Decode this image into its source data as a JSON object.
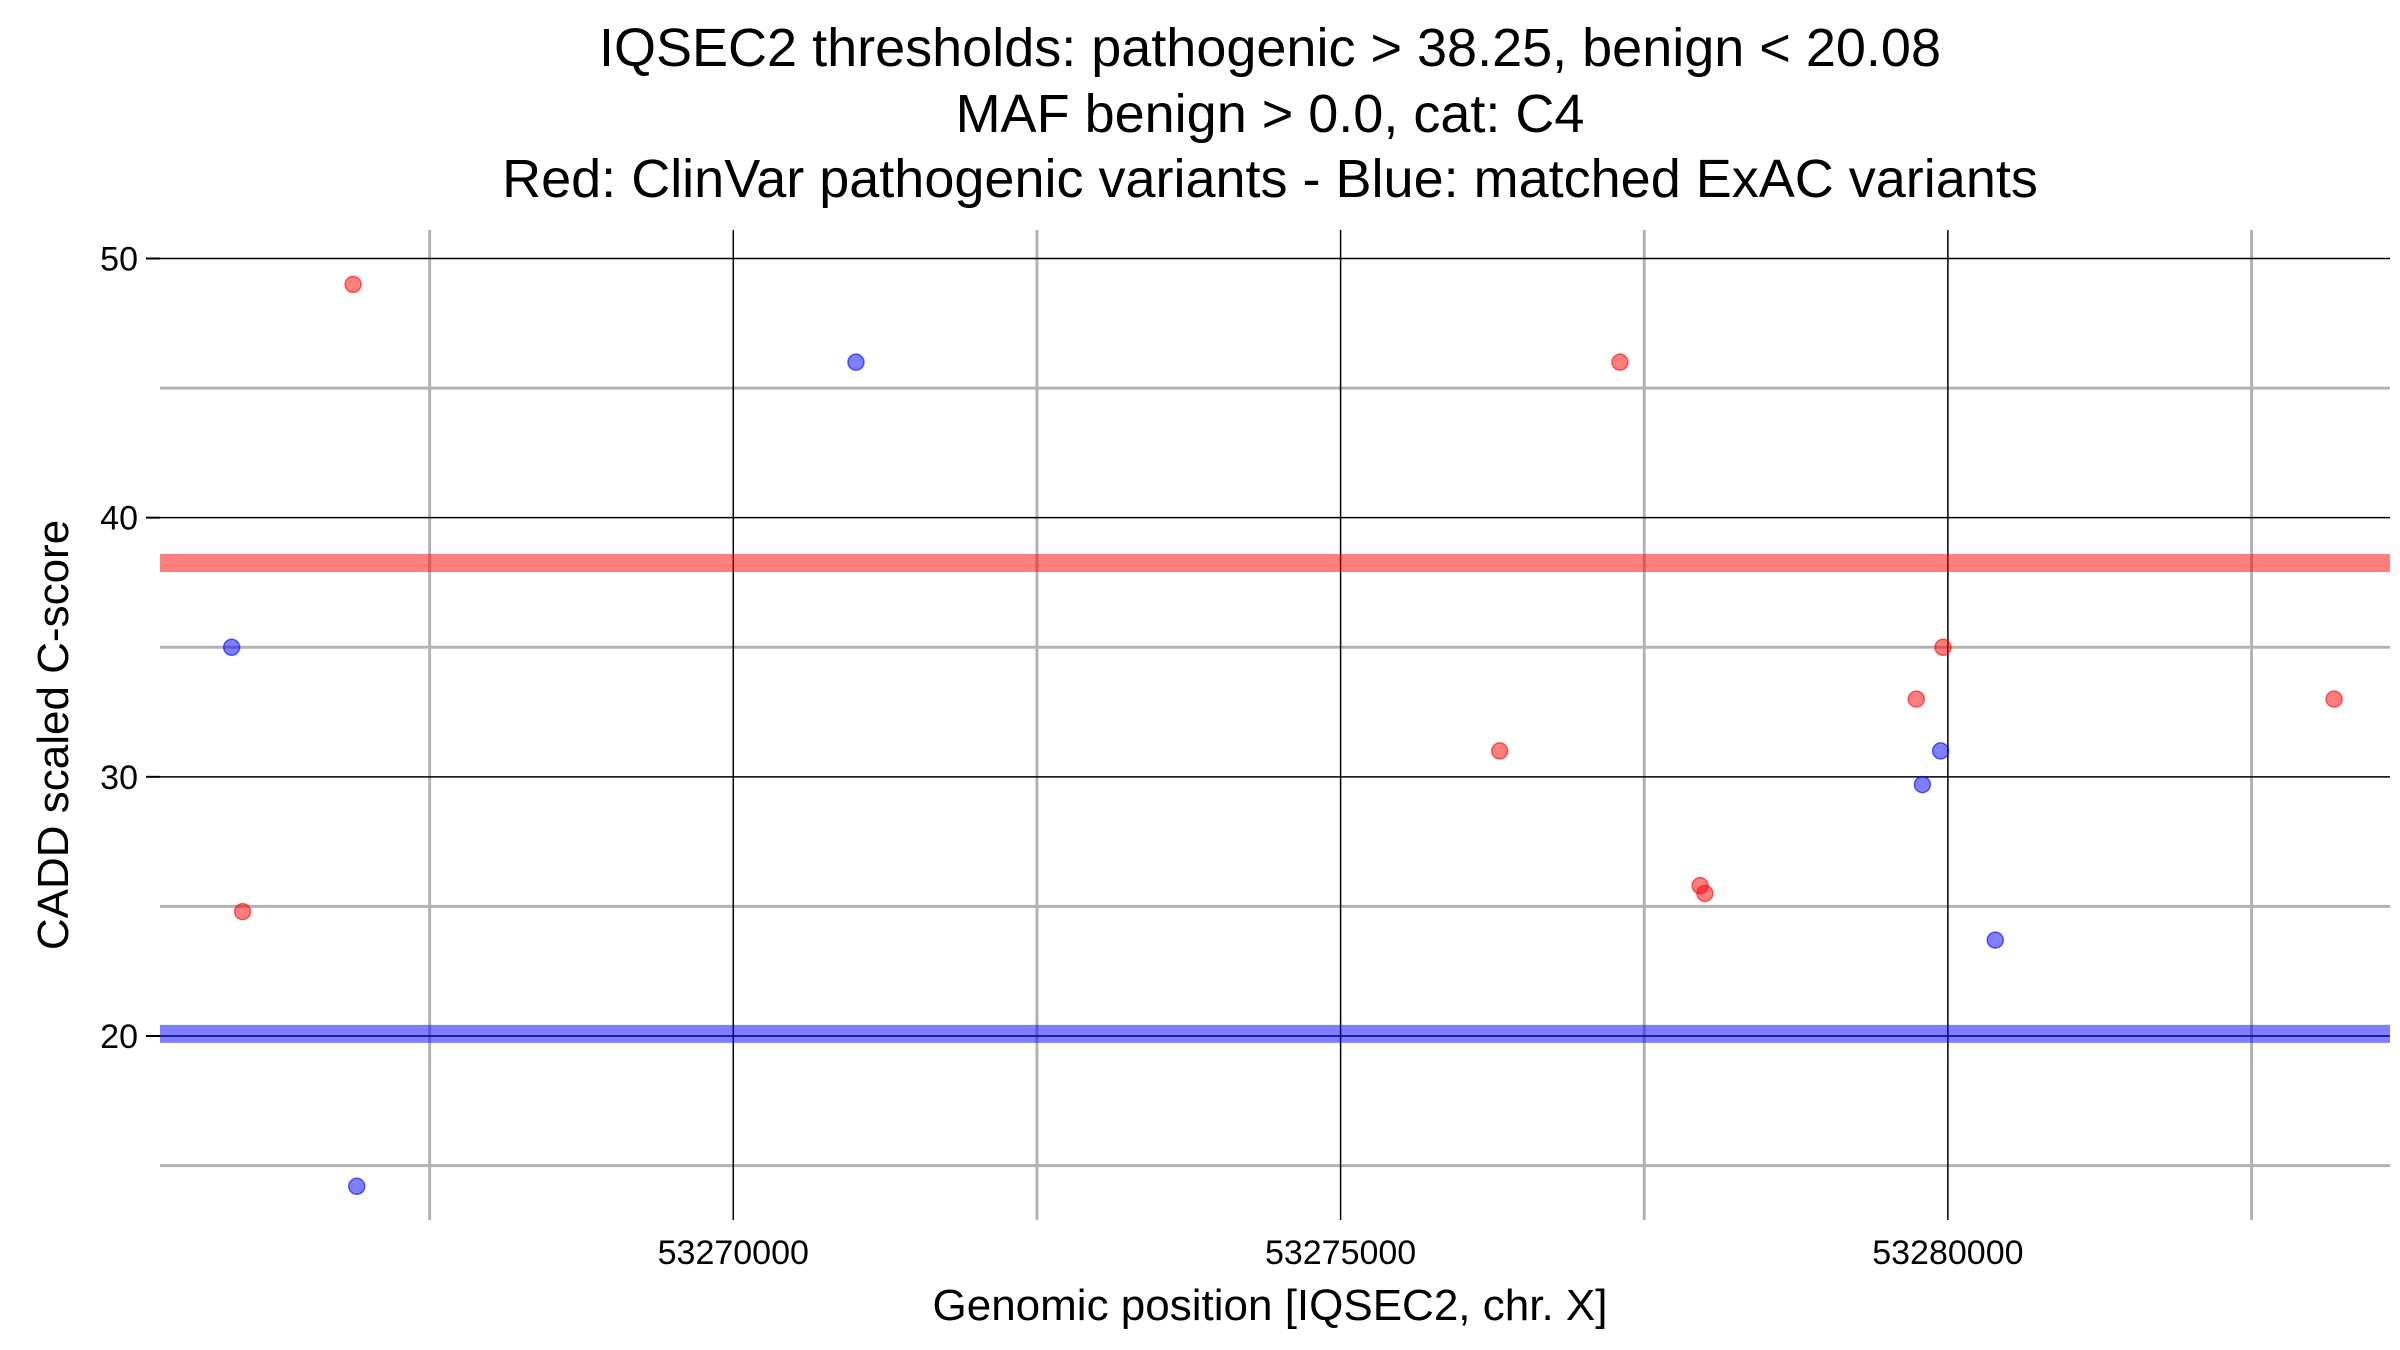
{
  "chart_data": {
    "type": "scatter",
    "title_lines": [
      "IQSEC2 thresholds: pathogenic > 38.25, benign < 20.08",
      "MAF benign > 0.0, cat: C4",
      "Red: ClinVar pathogenic variants - Blue: matched ExAC variants"
    ],
    "xlabel": "Genomic position [IQSEC2, chr. X]",
    "ylabel": "CADD scaled C-score",
    "xlim": [
      53265280,
      53283640
    ],
    "ylim": [
      12.9,
      51.1
    ],
    "x_ticks": [
      53270000,
      53275000,
      53280000
    ],
    "x_tick_labels": [
      "53270000",
      "53275000",
      "53280000"
    ],
    "x_minor_ticks": [
      53267500,
      53272500,
      53277500,
      53282500
    ],
    "y_ticks": [
      20,
      30,
      40,
      50
    ],
    "y_tick_labels": [
      "20",
      "30",
      "40",
      "50"
    ],
    "y_minor_ticks": [
      15,
      25,
      35,
      45
    ],
    "grid": true,
    "thresholds": [
      {
        "label": "pathogenic",
        "value": 38.25,
        "color": "#ff0000"
      },
      {
        "label": "benign",
        "value": 20.08,
        "color": "#0000ff"
      }
    ],
    "series": [
      {
        "color": "#ff0000",
        "points": [
          {
            "x": 53266870,
            "y": 49.0
          },
          {
            "x": 53265960,
            "y": 24.8
          },
          {
            "x": 53277300,
            "y": 46.0
          },
          {
            "x": 53276310,
            "y": 31.0
          },
          {
            "x": 53277960,
            "y": 25.8
          },
          {
            "x": 53278000,
            "y": 25.5
          },
          {
            "x": 53279740,
            "y": 33.0
          },
          {
            "x": 53279960,
            "y": 35.0
          },
          {
            "x": 53283180,
            "y": 33.0
          }
        ]
      },
      {
        "color": "#0000ff",
        "points": [
          {
            "x": 53265870,
            "y": 35.0
          },
          {
            "x": 53266900,
            "y": 14.2
          },
          {
            "x": 53271010,
            "y": 46.0
          },
          {
            "x": 53279790,
            "y": 29.7
          },
          {
            "x": 53279940,
            "y": 31.0
          },
          {
            "x": 53280390,
            "y": 23.7
          }
        ]
      }
    ]
  }
}
